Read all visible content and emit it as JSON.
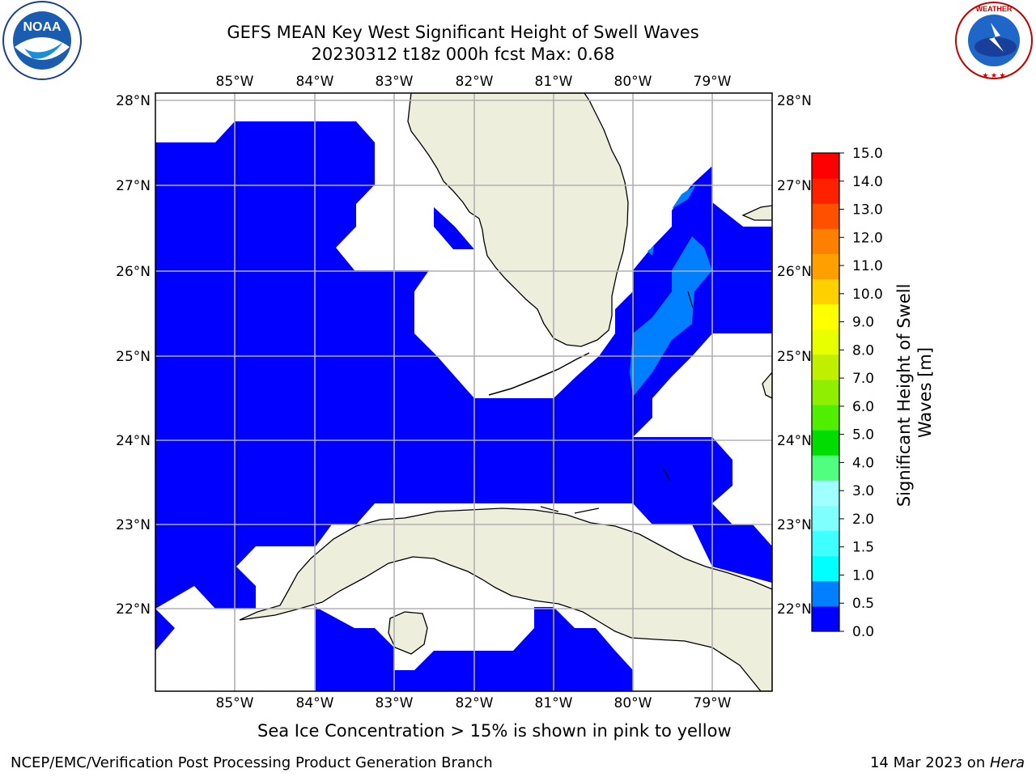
{
  "title": {
    "line1": "GEFS MEAN Key West Significant Height of Swell Waves",
    "line2": "20230312 t18z 000h fcst    Max: 0.68"
  },
  "logos": {
    "left": {
      "icon": "noaa-logo",
      "text": "NOAA",
      "ring_text": "NATIONAL OCEANIC AND ATMOSPHERIC ADMINISTRATION · U.S. DEPARTMENT OF COMMERCE"
    },
    "right": {
      "icon": "nws-logo",
      "ring_text": "NATIONAL WEATHER SERVICE"
    }
  },
  "map": {
    "lon_labels": [
      "85°W",
      "84°W",
      "83°W",
      "82°W",
      "81°W",
      "80°W",
      "79°W"
    ],
    "lat_labels": [
      "28°N",
      "27°N",
      "26°N",
      "25°N",
      "24°N",
      "23°N",
      "22°N"
    ],
    "lon_range": [
      -86.0,
      -78.25
    ],
    "lat_range": [
      21.0,
      28.1
    ],
    "colors": {
      "water_0": "#0000ff",
      "water_05": "#0080ff",
      "land": "#eeeedd",
      "grid": "#b0b0b0",
      "missing": "#ffffff"
    }
  },
  "colorbar": {
    "label": "Significant Height of Swell Waves [m]",
    "ticks": [
      "0.0",
      "0.5",
      "1.0",
      "1.5",
      "2.0",
      "3.0",
      "4.0",
      "5.0",
      "6.0",
      "7.0",
      "8.0",
      "9.0",
      "10.0",
      "11.0",
      "12.0",
      "13.0",
      "14.0",
      "15.0"
    ],
    "colors": [
      "#0000ff",
      "#0080ff",
      "#00ffff",
      "#40ffff",
      "#80ffff",
      "#a0ffff",
      "#50ff80",
      "#00dd00",
      "#50ee00",
      "#90ee00",
      "#c0f000",
      "#e8ff00",
      "#ffff00",
      "#ffd000",
      "#ffa000",
      "#ff8000",
      "#ff5000",
      "#ff2000",
      "#ff0000"
    ]
  },
  "ice_note": "Sea Ice Concentration > 15% is shown in pink to yellow",
  "footer": {
    "left": "NCEP/EMC/Verification Post Processing Product Generation Branch",
    "right_date": "14 Mar 2023 on ",
    "right_host": "Hera"
  }
}
